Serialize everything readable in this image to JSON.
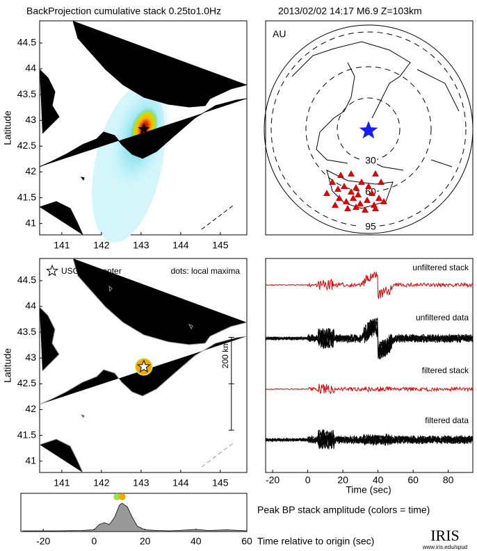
{
  "title": "BackProjection cumulative stack 0.25to1.0Hz",
  "event": "2013/02/02 14:17   M6.9  Z=103km",
  "chart_data": [
    {
      "type": "map",
      "ylabel": "Latitude",
      "xlim": [
        140.44,
        145.67
      ],
      "ylim": [
        40.78,
        44.93
      ],
      "xticks": [
        141,
        142,
        143,
        144,
        145
      ],
      "yticks": [
        41,
        41.5,
        42,
        42.5,
        43,
        43.5,
        44,
        44.5
      ],
      "epicenter": {
        "x": 143.07,
        "y": 42.83
      }
    },
    {
      "type": "globe",
      "label": "AU",
      "rings": [
        30,
        60,
        95
      ],
      "color": "#1a1aff",
      "station_color": "#e00000"
    },
    {
      "type": "map",
      "ylabel": "Latitude",
      "xlim": [
        140.44,
        145.67
      ],
      "ylim": [
        40.78,
        44.93
      ],
      "xticks": [
        141,
        142,
        143,
        144,
        145
      ],
      "yticks": [
        41,
        41.5,
        42,
        42.5,
        43,
        43.5,
        44,
        44.5
      ],
      "epicenter": {
        "x": 143.07,
        "y": 42.83
      },
      "legend": [
        "USGS epicenter",
        "dots: local maxima"
      ],
      "maxima": {
        "x": [
          143.07
        ],
        "y": [
          42.83
        ],
        "color": "#f5a800"
      },
      "scale_bar": {
        "label": "200 km",
        "x": 145.28,
        "y": [
          41.6,
          43.4
        ]
      }
    },
    {
      "type": "traces",
      "xlabel": "Time (sec)",
      "xlim": [
        -24,
        94
      ],
      "xticks": [
        -20,
        0,
        20,
        40,
        60,
        80
      ],
      "traces": [
        "unfiltered stack",
        "unfiltered data",
        "filtered stack",
        "filtered data"
      ]
    },
    {
      "type": "area",
      "title": "Peak BP stack amplitude (colors = time)",
      "xlabel": "Time relative to origin (sec)",
      "xlim": [
        -28.8,
        60
      ],
      "ylim": [
        0,
        1
      ],
      "xticks": [
        -20,
        0,
        20,
        40,
        60
      ],
      "color": "#999999",
      "x": [
        -28,
        -15,
        -5,
        0,
        2,
        4,
        6,
        8,
        10,
        11,
        13,
        15,
        17,
        20,
        25,
        30,
        35,
        40,
        45,
        52,
        60
      ],
      "values": [
        0.02,
        0.02,
        0.03,
        0.05,
        0.2,
        0.25,
        0.2,
        0.4,
        0.75,
        0.8,
        0.7,
        0.4,
        0.15,
        0.05,
        0.03,
        0.02,
        0.04,
        0.06,
        0.03,
        0.05,
        0.02
      ],
      "peaks": {
        "x": [
          9,
          11
        ],
        "colors": [
          "#9be34a",
          "#f5a800"
        ]
      }
    },
    {
      "type": "logo",
      "name": "IRIS",
      "url": "www.iris.edu/spud"
    }
  ]
}
